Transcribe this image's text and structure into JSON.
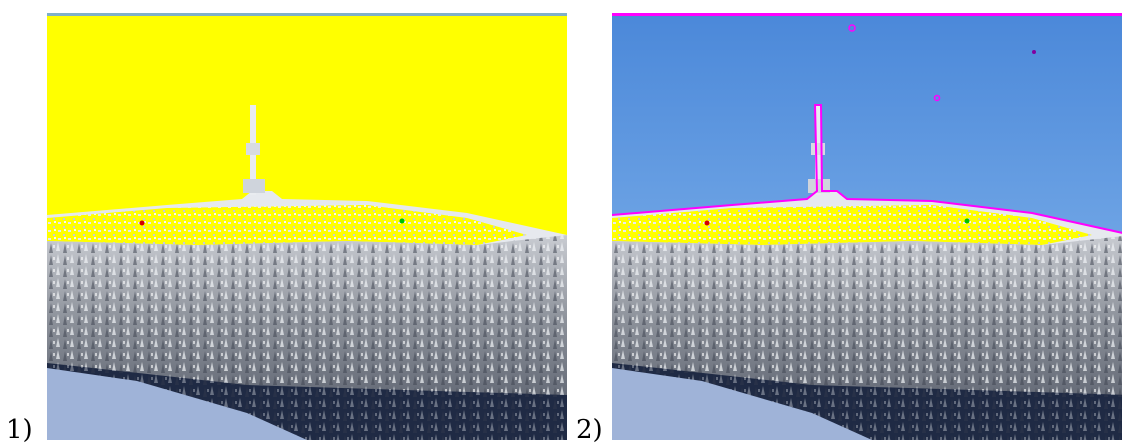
{
  "panels": [
    {
      "label": "1)"
    },
    {
      "label": "2)"
    }
  ]
}
